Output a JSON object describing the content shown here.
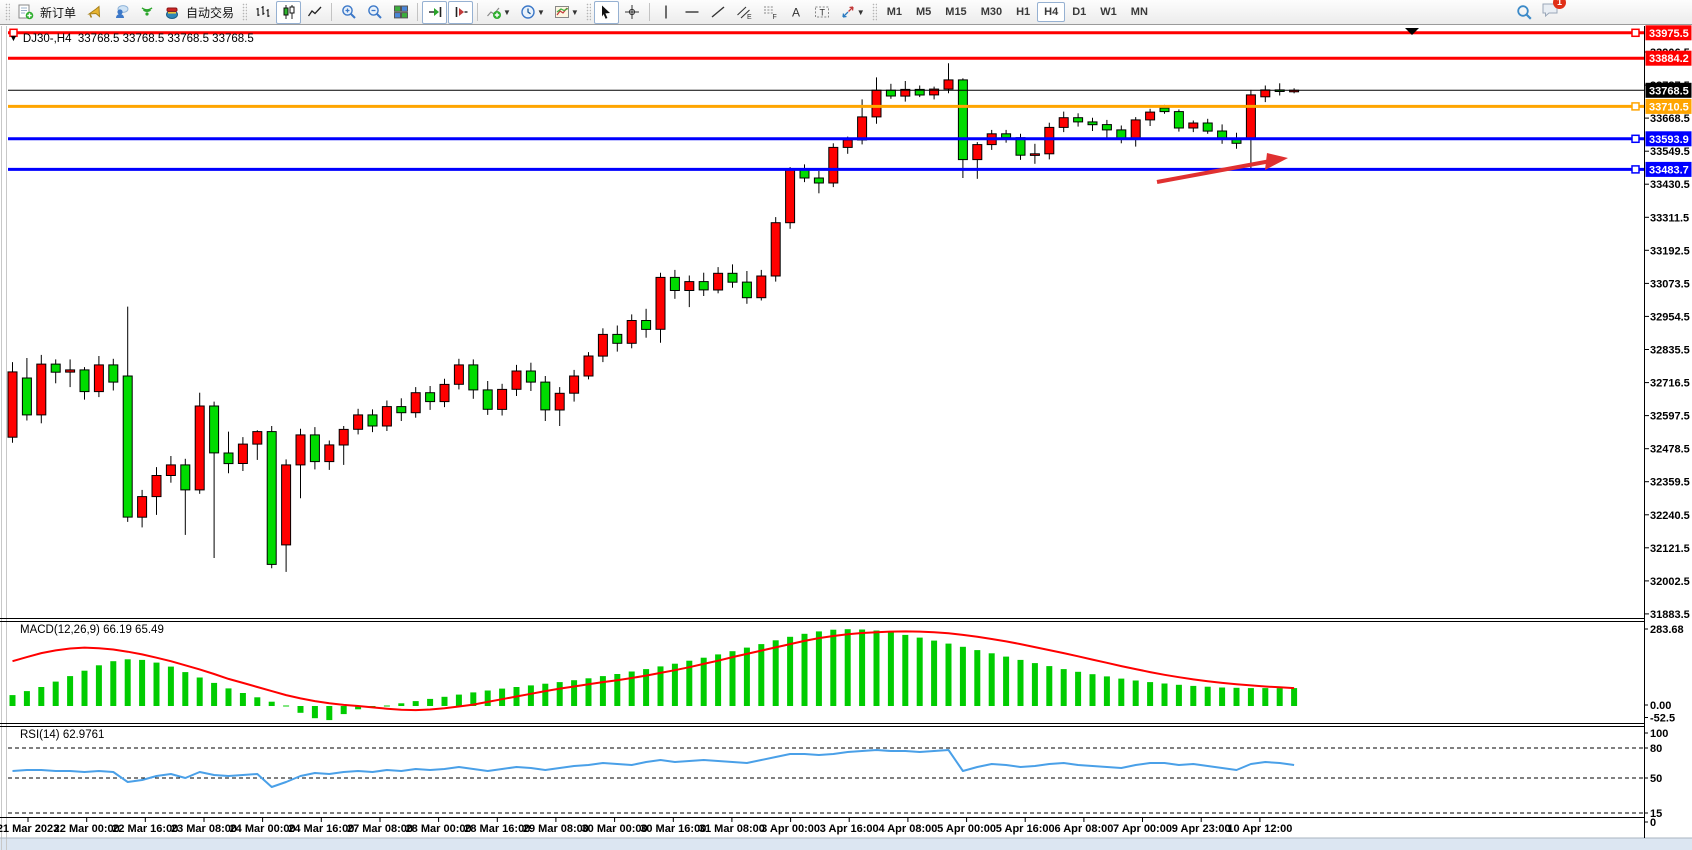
{
  "toolbar": {
    "new_order_label": "新订单",
    "autotrading_label": "自动交易",
    "notification_count": "1",
    "timeframes": [
      {
        "label": "M1",
        "active": false
      },
      {
        "label": "M5",
        "active": false
      },
      {
        "label": "M15",
        "active": false
      },
      {
        "label": "M30",
        "active": false
      },
      {
        "label": "H1",
        "active": false
      },
      {
        "label": "H4",
        "active": true
      },
      {
        "label": "D1",
        "active": false
      },
      {
        "label": "W1",
        "active": false
      },
      {
        "label": "MN",
        "active": false
      }
    ]
  },
  "chart": {
    "title": "DJ30-,H4  33768.5 33768.5 33768.5 33768.5",
    "macd_label": "MACD(12,26,9) 66.19 65.49",
    "rsi_label": "RSI(14) 62.9761"
  },
  "chart_data": {
    "type": "candlestick",
    "symbol": "DJ30-",
    "timeframe": "H4",
    "quote": {
      "open": "33768.5",
      "high": "33768.5",
      "low": "33768.5",
      "close": "33768.5"
    },
    "bull_color": "#ff0000",
    "bear_color": "#00dc00",
    "price_ticks": [
      33906.5,
      33787.5,
      33668.5,
      33549.5,
      33430.5,
      33311.5,
      33192.5,
      33073.5,
      32954.5,
      32835.5,
      32716.5,
      32597.5,
      32478.5,
      32359.5,
      32240.5,
      32121.5,
      32002.5,
      31883.5
    ],
    "levels": [
      {
        "label": "33975.5",
        "price": 33975.5,
        "color": "#ff0000",
        "width": 3,
        "handles": [
          "left",
          "right"
        ],
        "current": false
      },
      {
        "label": "33884.2",
        "price": 33884.2,
        "color": "#ff0000",
        "width": 3,
        "handles": [],
        "current": false
      },
      {
        "label": "33768.5",
        "price": 33768.5,
        "color": "#000000",
        "width": 1,
        "handles": [],
        "current": true
      },
      {
        "label": "33710.5",
        "price": 33710.5,
        "color": "#ffa500",
        "width": 3,
        "handles": [
          "right"
        ],
        "current": false
      },
      {
        "label": "33593.9",
        "price": 33593.9,
        "color": "#0000ff",
        "width": 3,
        "handles": [
          "right"
        ],
        "current": false
      },
      {
        "label": "33483.7",
        "price": 33483.7,
        "color": "#0000ff",
        "width": 3,
        "handles": [
          "right"
        ],
        "current": false
      }
    ],
    "candles": [
      [
        32520,
        32790,
        32500,
        32755
      ],
      [
        32733,
        32805,
        32580,
        32600
      ],
      [
        32600,
        32816,
        32570,
        32783
      ],
      [
        32783,
        32800,
        32714,
        32754
      ],
      [
        32754,
        32800,
        32700,
        32762
      ],
      [
        32762,
        32772,
        32655,
        32684
      ],
      [
        32684,
        32812,
        32664,
        32780
      ],
      [
        32780,
        32802,
        32688,
        32718
      ],
      [
        32740,
        32990,
        32215,
        32232
      ],
      [
        32232,
        32330,
        32195,
        32306
      ],
      [
        32306,
        32412,
        32240,
        32382
      ],
      [
        32382,
        32452,
        32356,
        32420
      ],
      [
        32420,
        32442,
        32168,
        32330
      ],
      [
        32330,
        32680,
        32316,
        32632
      ],
      [
        32632,
        32648,
        32085,
        32463
      ],
      [
        32463,
        32540,
        32390,
        32425
      ],
      [
        32425,
        32520,
        32398,
        32495
      ],
      [
        32495,
        32545,
        32438,
        32540
      ],
      [
        32540,
        32560,
        32048,
        32062
      ],
      [
        32132,
        32440,
        32035,
        32420
      ],
      [
        32420,
        32550,
        32300,
        32528
      ],
      [
        32528,
        32556,
        32404,
        32432
      ],
      [
        32432,
        32508,
        32402,
        32492
      ],
      [
        32492,
        32560,
        32420,
        32548
      ],
      [
        32548,
        32622,
        32530,
        32600
      ],
      [
        32600,
        32620,
        32538,
        32560
      ],
      [
        32560,
        32652,
        32542,
        32630
      ],
      [
        32630,
        32660,
        32578,
        32608
      ],
      [
        32608,
        32700,
        32590,
        32680
      ],
      [
        32680,
        32704,
        32618,
        32648
      ],
      [
        32648,
        32730,
        32628,
        32710
      ],
      [
        32710,
        32802,
        32692,
        32780
      ],
      [
        32780,
        32800,
        32658,
        32690
      ],
      [
        32690,
        32722,
        32600,
        32620
      ],
      [
        32620,
        32712,
        32598,
        32692
      ],
      [
        32692,
        32780,
        32668,
        32758
      ],
      [
        32758,
        32788,
        32686,
        32718
      ],
      [
        32718,
        32740,
        32578,
        32618
      ],
      [
        32618,
        32700,
        32560,
        32678
      ],
      [
        32678,
        32762,
        32648,
        32740
      ],
      [
        32740,
        32826,
        32728,
        32812
      ],
      [
        32812,
        32912,
        32790,
        32890
      ],
      [
        32890,
        32922,
        32828,
        32858
      ],
      [
        32858,
        32962,
        32840,
        32940
      ],
      [
        32940,
        32982,
        32878,
        32908
      ],
      [
        32908,
        33112,
        32860,
        33095
      ],
      [
        33095,
        33122,
        33018,
        33048
      ],
      [
        33048,
        33102,
        32988,
        33080
      ],
      [
        33080,
        33112,
        33028,
        33050
      ],
      [
        33050,
        33132,
        33038,
        33110
      ],
      [
        33110,
        33142,
        33058,
        33078
      ],
      [
        33078,
        33118,
        33000,
        33022
      ],
      [
        33022,
        33122,
        33012,
        33100
      ],
      [
        33100,
        33312,
        33080,
        33292
      ],
      [
        33292,
        33492,
        33270,
        33482
      ],
      [
        33482,
        33502,
        33438,
        33453
      ],
      [
        33453,
        33478,
        33398,
        33435
      ],
      [
        33435,
        33578,
        33420,
        33563
      ],
      [
        33563,
        33602,
        33540,
        33590
      ],
      [
        33590,
        33736,
        33574,
        33673
      ],
      [
        33673,
        33815,
        33648,
        33769
      ],
      [
        33769,
        33792,
        33738,
        33748
      ],
      [
        33748,
        33802,
        33728,
        33772
      ],
      [
        33772,
        33786,
        33744,
        33752
      ],
      [
        33752,
        33782,
        33736,
        33773
      ],
      [
        33773,
        33866,
        33758,
        33806
      ],
      [
        33806,
        33812,
        33453,
        33519
      ],
      [
        33519,
        33582,
        33450,
        33573
      ],
      [
        33573,
        33626,
        33554,
        33612
      ],
      [
        33612,
        33626,
        33580,
        33598
      ],
      [
        33598,
        33612,
        33518,
        33535
      ],
      [
        33535,
        33576,
        33504,
        33540
      ],
      [
        33540,
        33652,
        33520,
        33635
      ],
      [
        33635,
        33692,
        33618,
        33670
      ],
      [
        33670,
        33686,
        33638,
        33655
      ],
      [
        33655,
        33670,
        33622,
        33645
      ],
      [
        33645,
        33662,
        33598,
        33626
      ],
      [
        33626,
        33642,
        33578,
        33594
      ],
      [
        33594,
        33672,
        33566,
        33662
      ],
      [
        33662,
        33702,
        33640,
        33690
      ],
      [
        33705,
        33716,
        33684,
        33692
      ],
      [
        33692,
        33700,
        33620,
        33633
      ],
      [
        33633,
        33660,
        33618,
        33651
      ],
      [
        33651,
        33666,
        33612,
        33622
      ],
      [
        33622,
        33646,
        33576,
        33597
      ],
      [
        33597,
        33616,
        33558,
        33578
      ],
      [
        33597,
        33770,
        33484,
        33752
      ],
      [
        33745,
        33786,
        33726,
        33770
      ],
      [
        33770,
        33794,
        33750,
        33766
      ],
      [
        33766,
        33776,
        33758,
        33769
      ]
    ],
    "macd": {
      "hist_color": "#00cc00",
      "signal_color": "#ff0000",
      "scale_labels": [
        [
          "283.68",
          629
        ],
        [
          "0.00",
          705
        ],
        [
          "-52.5",
          717.5
        ]
      ],
      "hist": [
        40,
        55,
        70,
        90,
        110,
        130,
        150,
        165,
        172,
        170,
        160,
        145,
        125,
        105,
        85,
        65,
        48,
        32,
        16,
        2,
        -25,
        -45,
        -52,
        -30,
        -12,
        -3,
        2,
        10,
        18,
        26,
        34,
        42,
        50,
        57,
        64,
        70,
        76,
        82,
        88,
        95,
        102,
        110,
        118,
        127,
        136,
        146,
        156,
        167,
        178,
        190,
        202,
        215,
        228,
        242,
        255,
        266,
        275,
        281,
        283,
        282,
        278,
        271,
        262,
        252,
        241,
        230,
        218,
        206,
        194,
        182,
        170,
        158,
        147,
        136,
        126,
        117,
        109,
        101,
        94,
        88,
        83,
        78,
        74,
        71,
        68,
        67,
        66,
        66,
        66,
        66
      ],
      "signal": [
        165,
        180,
        195,
        205,
        212,
        215,
        213,
        208,
        200,
        190,
        178,
        165,
        150,
        135,
        118,
        100,
        85,
        70,
        55,
        40,
        28,
        18,
        10,
        4,
        0,
        -5,
        -10,
        -14,
        -15,
        -13,
        -8,
        -2,
        5,
        15,
        25,
        35,
        45,
        55,
        64,
        72,
        80,
        88,
        95,
        103,
        112,
        122,
        132,
        143,
        155,
        167,
        180,
        192,
        204,
        216,
        228,
        240,
        250,
        258,
        264,
        269,
        272,
        274,
        275,
        274,
        272,
        268,
        262,
        255,
        247,
        238,
        228,
        217,
        206,
        195,
        183,
        171,
        159,
        147,
        136,
        125,
        115,
        106,
        98,
        91,
        85,
        80,
        76,
        72,
        69,
        66
      ]
    },
    "rsi": {
      "line_color": "#4aa0e8",
      "scale_labels": [
        [
          "100",
          733
        ],
        [
          "80",
          748
        ],
        [
          "50",
          778
        ],
        [
          "15",
          813
        ],
        [
          "0",
          822
        ]
      ],
      "dashed_levels_y": [
        748,
        778,
        813
      ],
      "values": [
        57,
        58,
        58,
        57,
        57,
        56,
        57,
        56,
        46,
        48,
        52,
        54,
        50,
        56,
        53,
        52,
        53,
        54,
        41,
        46,
        52,
        55,
        54,
        56,
        57,
        56,
        58,
        57,
        59,
        58,
        59,
        61,
        59,
        57,
        59,
        61,
        60,
        58,
        60,
        62,
        63,
        65,
        64,
        63,
        66,
        68,
        66,
        67,
        68,
        67,
        66,
        65,
        68,
        71,
        74,
        74,
        73,
        74,
        76,
        77,
        78,
        77,
        77,
        76,
        77,
        78,
        57,
        61,
        64,
        63,
        61,
        62,
        64,
        65,
        63,
        62,
        61,
        60,
        63,
        65,
        65,
        63,
        64,
        62,
        60,
        58,
        64,
        66,
        65,
        63
      ]
    },
    "time_labels": [
      "21 Mar 2023",
      "22 Mar 00:00",
      "22 Mar 16:00",
      "23 Mar 08:00",
      "24 Mar 00:00",
      "24 Mar 16:00",
      "27 Mar 08:00",
      "28 Mar 00:00",
      "28 Mar 16:00",
      "29 Mar 08:00",
      "30 Mar 00:00",
      "30 Mar 16:00",
      "31 Mar 08:00",
      "3 Apr 00:00",
      "3 Apr 16:00",
      "4 Apr 08:00",
      "5 Apr 00:00",
      "5 Apr 16:00",
      "6 Apr 08:00",
      "7 Apr 00:00",
      "9 Apr 23:00",
      "10 Apr 12:00"
    ],
    "annotation": {
      "type": "arrow",
      "color": "#e03131"
    }
  }
}
